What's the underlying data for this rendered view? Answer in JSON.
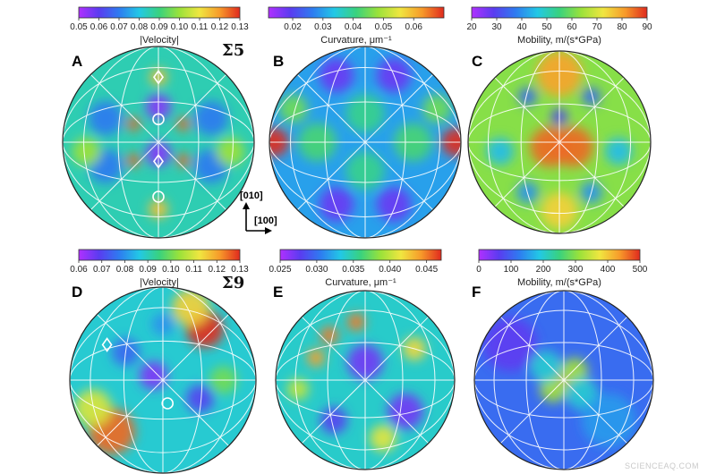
{
  "watermark": "SCIENCEAQ.COM",
  "axis_labels": {
    "y": "[010]",
    "x": "[100]"
  },
  "colors": {
    "scale": [
      "#b030ff",
      "#5a3cf0",
      "#2e7bf0",
      "#22c8e6",
      "#39d27e",
      "#9be23a",
      "#f0e640",
      "#f79a2a",
      "#e02a1e"
    ],
    "net_lines": "#ffffff",
    "marker": "#ffffff"
  },
  "chart_data": [
    {
      "type": "heatmap",
      "panel": "A",
      "annotation": "Σ5",
      "colorbar": {
        "title": "|Velocity|",
        "min": 0.05,
        "max": 0.13,
        "ticks": [
          "0.05",
          "0.06",
          "0.07",
          "0.08",
          "0.09",
          "0.10",
          "0.11",
          "0.12",
          "0.13"
        ]
      },
      "background": 0.085,
      "spots": [
        {
          "x": 0.0,
          "y": -0.68,
          "r": 0.09,
          "v": 0.115
        },
        {
          "x": -0.26,
          "y": -0.19,
          "r": 0.07,
          "v": 0.125
        },
        {
          "x": 0.26,
          "y": -0.19,
          "r": 0.07,
          "v": 0.125
        },
        {
          "x": -0.26,
          "y": 0.19,
          "r": 0.07,
          "v": 0.125
        },
        {
          "x": 0.26,
          "y": 0.19,
          "r": 0.07,
          "v": 0.125
        },
        {
          "x": 0.0,
          "y": -0.37,
          "r": 0.13,
          "v": 0.055
        },
        {
          "x": 0.0,
          "y": 0.12,
          "r": 0.13,
          "v": 0.055
        },
        {
          "x": -0.55,
          "y": -0.25,
          "r": 0.18,
          "v": 0.07
        },
        {
          "x": 0.55,
          "y": -0.25,
          "r": 0.18,
          "v": 0.07
        },
        {
          "x": -0.55,
          "y": 0.25,
          "r": 0.18,
          "v": 0.07
        },
        {
          "x": 0.55,
          "y": 0.25,
          "r": 0.18,
          "v": 0.07
        },
        {
          "x": 0.0,
          "y": 0.7,
          "r": 0.1,
          "v": 0.115
        },
        {
          "x": -0.75,
          "y": 0.1,
          "r": 0.15,
          "v": 0.1
        },
        {
          "x": 0.75,
          "y": 0.1,
          "r": 0.15,
          "v": 0.1
        }
      ],
      "markers": [
        {
          "shape": "diamond",
          "x": 0.0,
          "y": -0.68
        },
        {
          "shape": "circle",
          "x": 0.0,
          "y": -0.24
        },
        {
          "shape": "diamond",
          "x": 0.0,
          "y": 0.2
        },
        {
          "shape": "circle",
          "x": 0.0,
          "y": 0.57
        }
      ]
    },
    {
      "type": "heatmap",
      "panel": "B",
      "colorbar": {
        "title": "Curvature, μm⁻¹",
        "min": 0.012,
        "max": 0.07,
        "ticks": [
          "0.02",
          "0.03",
          "0.04",
          "0.05",
          "0.06"
        ]
      },
      "background": 0.03,
      "spots": [
        {
          "x": -0.95,
          "y": 0.0,
          "r": 0.15,
          "v": 0.07
        },
        {
          "x": 0.95,
          "y": 0.0,
          "r": 0.15,
          "v": 0.07
        },
        {
          "x": 0.0,
          "y": -0.3,
          "r": 0.2,
          "v": 0.04
        },
        {
          "x": 0.0,
          "y": 0.3,
          "r": 0.2,
          "v": 0.04
        },
        {
          "x": -0.5,
          "y": 0.0,
          "r": 0.2,
          "v": 0.042
        },
        {
          "x": 0.5,
          "y": 0.0,
          "r": 0.2,
          "v": 0.042
        },
        {
          "x": -0.3,
          "y": -0.7,
          "r": 0.18,
          "v": 0.018
        },
        {
          "x": 0.3,
          "y": -0.7,
          "r": 0.18,
          "v": 0.018
        },
        {
          "x": -0.3,
          "y": 0.65,
          "r": 0.18,
          "v": 0.018
        },
        {
          "x": 0.3,
          "y": 0.65,
          "r": 0.18,
          "v": 0.018
        },
        {
          "x": -0.75,
          "y": -0.35,
          "r": 0.15,
          "v": 0.045
        },
        {
          "x": 0.75,
          "y": -0.35,
          "r": 0.15,
          "v": 0.045
        }
      ],
      "markers": []
    },
    {
      "type": "heatmap",
      "panel": "C",
      "colorbar": {
        "title": "Mobility, m/(s*GPa)",
        "min": 20,
        "max": 90,
        "ticks": [
          "20",
          "30",
          "40",
          "50",
          "60",
          "70",
          "80",
          "90"
        ]
      },
      "background": 62,
      "spots": [
        {
          "x": -0.1,
          "y": 0.05,
          "r": 0.22,
          "v": 85
        },
        {
          "x": 0.15,
          "y": 0.05,
          "r": 0.22,
          "v": 85
        },
        {
          "x": 0.0,
          "y": -0.75,
          "r": 0.25,
          "v": 80
        },
        {
          "x": 0.0,
          "y": 0.75,
          "r": 0.2,
          "v": 75
        },
        {
          "x": 0.0,
          "y": -0.28,
          "r": 0.09,
          "v": 30
        },
        {
          "x": -0.35,
          "y": -0.5,
          "r": 0.1,
          "v": 35
        },
        {
          "x": 0.35,
          "y": -0.5,
          "r": 0.1,
          "v": 35
        },
        {
          "x": -0.65,
          "y": 0.1,
          "r": 0.15,
          "v": 45
        },
        {
          "x": 0.65,
          "y": 0.1,
          "r": 0.15,
          "v": 45
        },
        {
          "x": -0.35,
          "y": 0.55,
          "r": 0.12,
          "v": 40
        },
        {
          "x": 0.35,
          "y": 0.55,
          "r": 0.12,
          "v": 40
        }
      ],
      "markers": []
    },
    {
      "type": "heatmap",
      "panel": "D",
      "annotation": "Σ9",
      "colorbar": {
        "title": "|Velocity|",
        "min": 0.06,
        "max": 0.13,
        "ticks": [
          "0.06",
          "0.07",
          "0.08",
          "0.09",
          "0.10",
          "0.11",
          "0.12",
          "0.13"
        ]
      },
      "background": 0.088,
      "spots": [
        {
          "x": 0.45,
          "y": -0.55,
          "r": 0.2,
          "v": 0.13
        },
        {
          "x": 0.3,
          "y": -0.78,
          "r": 0.2,
          "v": 0.115
        },
        {
          "x": -0.55,
          "y": 0.55,
          "r": 0.25,
          "v": 0.125
        },
        {
          "x": -0.75,
          "y": 0.3,
          "r": 0.2,
          "v": 0.11
        },
        {
          "x": -0.1,
          "y": -0.05,
          "r": 0.15,
          "v": 0.065
        },
        {
          "x": 0.4,
          "y": 0.2,
          "r": 0.15,
          "v": 0.07
        },
        {
          "x": -0.4,
          "y": -0.3,
          "r": 0.15,
          "v": 0.075
        },
        {
          "x": 0.0,
          "y": -0.6,
          "r": 0.12,
          "v": 0.08
        },
        {
          "x": 0.65,
          "y": 0.0,
          "r": 0.15,
          "v": 0.1
        }
      ],
      "markers": [
        {
          "shape": "diamond",
          "x": -0.6,
          "y": -0.38
        },
        {
          "shape": "circle",
          "x": 0.05,
          "y": 0.25
        }
      ]
    },
    {
      "type": "heatmap",
      "panel": "E",
      "colorbar": {
        "title": "Curvature, μm⁻¹",
        "min": 0.025,
        "max": 0.047,
        "ticks": [
          "0.025",
          "0.030",
          "0.035",
          "0.040",
          "0.045"
        ]
      },
      "background": 0.034,
      "spots": [
        {
          "x": -0.4,
          "y": -0.5,
          "r": 0.1,
          "v": 0.045
        },
        {
          "x": -0.1,
          "y": -0.65,
          "r": 0.1,
          "v": 0.045
        },
        {
          "x": -0.55,
          "y": -0.25,
          "r": 0.1,
          "v": 0.044
        },
        {
          "x": 0.0,
          "y": -0.2,
          "r": 0.2,
          "v": 0.027
        },
        {
          "x": 0.45,
          "y": 0.35,
          "r": 0.2,
          "v": 0.027
        },
        {
          "x": -0.35,
          "y": 0.45,
          "r": 0.15,
          "v": 0.028
        },
        {
          "x": 0.55,
          "y": -0.35,
          "r": 0.13,
          "v": 0.042
        },
        {
          "x": 0.2,
          "y": 0.65,
          "r": 0.15,
          "v": 0.041
        },
        {
          "x": -0.75,
          "y": 0.1,
          "r": 0.12,
          "v": 0.04
        }
      ],
      "markers": []
    },
    {
      "type": "heatmap",
      "panel": "F",
      "colorbar": {
        "title": "Mobility, m/(s*GPa)",
        "min": 0,
        "max": 500,
        "ticks": [
          "0",
          "100",
          "200",
          "300",
          "400",
          "500"
        ]
      },
      "background": 110,
      "spots": [
        {
          "x": 0.0,
          "y": 0.0,
          "r": 0.1,
          "v": 480
        },
        {
          "x": 0.12,
          "y": -0.1,
          "r": 0.15,
          "v": 320
        },
        {
          "x": -0.12,
          "y": 0.1,
          "r": 0.15,
          "v": 320
        },
        {
          "x": 0.2,
          "y": 0.15,
          "r": 0.18,
          "v": 200
        },
        {
          "x": -0.2,
          "y": -0.15,
          "r": 0.18,
          "v": 200
        },
        {
          "x": 0.5,
          "y": 0.45,
          "r": 0.3,
          "v": 150
        },
        {
          "x": -0.6,
          "y": -0.4,
          "r": 0.3,
          "v": 60
        }
      ],
      "markers": []
    }
  ]
}
